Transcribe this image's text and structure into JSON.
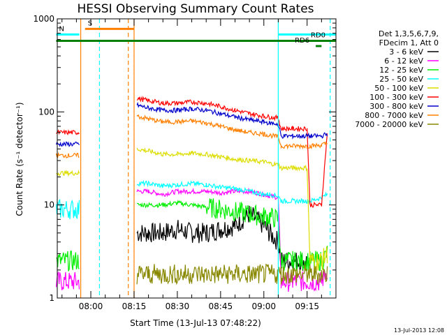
{
  "chart_data": {
    "type": "line",
    "title": "HESSI Observing Summary Count Rates",
    "xlabel": "Start Time (13-Jul-13 07:48:22)",
    "ylabel": "Count Rate (s⁻¹ detector⁻¹)",
    "y_scale": "log",
    "ylim": [
      1,
      1000
    ],
    "xlim": [
      "07:48:22",
      "09:25:00"
    ],
    "x_ticks": [
      "08:00",
      "08:15",
      "08:30",
      "08:45",
      "09:00",
      "09:15"
    ],
    "y_ticks": [
      "1",
      "10",
      "100",
      "1000"
    ],
    "footer": "13-Jul-2013 12:08",
    "legend_header": [
      "Det 1,3,5,6,7,9,",
      "FDecim 1, Att 0"
    ],
    "series": [
      {
        "name": "3 - 6 keV",
        "color": "#000000",
        "x": [
          "07:48",
          "07:56",
          "08:00",
          "08:15",
          "08:16",
          "08:20",
          "08:25",
          "08:30",
          "08:35",
          "08:40",
          "08:45",
          "08:50",
          "08:55",
          "09:00",
          "09:02",
          "09:05",
          "09:06",
          "09:10",
          "09:15",
          "09:16",
          "09:20",
          "09:22"
        ],
        "values": [
          null,
          null,
          null,
          null,
          5,
          5,
          5,
          5.5,
          5,
          5,
          5.5,
          6,
          8,
          6,
          5,
          4,
          2.5,
          2.5,
          2.5,
          null,
          null,
          null
        ]
      },
      {
        "name": "6 - 12 keV",
        "color": "#ff00ff",
        "x": [
          "07:48",
          "07:56",
          "08:00",
          "08:15",
          "08:16",
          "08:20",
          "08:25",
          "08:30",
          "08:35",
          "08:40",
          "08:45",
          "08:50",
          "08:55",
          "09:00",
          "09:02",
          "09:05",
          "09:06",
          "09:10",
          "09:15",
          "09:16",
          "09:20",
          "09:22"
        ],
        "values": [
          1.5,
          1.5,
          null,
          null,
          14,
          14,
          13,
          14,
          14,
          14,
          13.5,
          14,
          14,
          13,
          12.5,
          12,
          1.5,
          1.5,
          1.5,
          1.5,
          1.5,
          2
        ]
      },
      {
        "name": "12 - 25 keV",
        "color": "#00ee00",
        "x": [
          "07:48",
          "07:56",
          "08:00",
          "08:15",
          "08:16",
          "08:20",
          "08:25",
          "08:30",
          "08:35",
          "08:40",
          "08:45",
          "08:50",
          "08:55",
          "09:00",
          "09:02",
          "09:05",
          "09:06",
          "09:10",
          "09:15",
          "09:16",
          "09:20",
          "09:22"
        ],
        "values": [
          2.5,
          2.5,
          null,
          null,
          10,
          10,
          10,
          10.5,
          10,
          9.5,
          9,
          8.5,
          8,
          7.5,
          7.5,
          7,
          2.5,
          2.5,
          2.5,
          2.5,
          2.5,
          3
        ]
      },
      {
        "name": "25 - 50 keV",
        "color": "#00ffff",
        "x": [
          "07:48",
          "07:56",
          "08:00",
          "08:15",
          "08:16",
          "08:20",
          "08:25",
          "08:30",
          "08:35",
          "08:40",
          "08:45",
          "08:50",
          "08:55",
          "09:00",
          "09:02",
          "09:05",
          "09:06",
          "09:10",
          "09:15",
          "09:16",
          "09:20",
          "09:22"
        ],
        "values": [
          9,
          9,
          null,
          null,
          17,
          17,
          16,
          16.5,
          17,
          16.5,
          15.5,
          15,
          14,
          13,
          13,
          12.5,
          11,
          11,
          11,
          11,
          12,
          13
        ]
      },
      {
        "name": "50 - 100 keV",
        "color": "#dddd00",
        "x": [
          "07:48",
          "07:56",
          "08:00",
          "08:15",
          "08:16",
          "08:20",
          "08:25",
          "08:30",
          "08:35",
          "08:40",
          "08:45",
          "08:50",
          "08:55",
          "09:00",
          "09:02",
          "09:05",
          "09:06",
          "09:10",
          "09:15",
          "09:16",
          "09:20",
          "09:22"
        ],
        "values": [
          22,
          22,
          null,
          null,
          40,
          38,
          35,
          35,
          36,
          35,
          33,
          31,
          30,
          29,
          28,
          27,
          25,
          25,
          25,
          2.5,
          2.5,
          3
        ]
      },
      {
        "name": "100 - 300 keV",
        "color": "#ff0000",
        "x": [
          "07:48",
          "07:56",
          "08:00",
          "08:15",
          "08:16",
          "08:20",
          "08:25",
          "08:30",
          "08:35",
          "08:40",
          "08:45",
          "08:50",
          "08:55",
          "09:00",
          "09:02",
          "09:05",
          "09:06",
          "09:10",
          "09:15",
          "09:16",
          "09:20",
          "09:22"
        ],
        "values": [
          60,
          60,
          null,
          null,
          140,
          132,
          124,
          124,
          128,
          124,
          114,
          104,
          96,
          90,
          88,
          86,
          66,
          66,
          66,
          10,
          10,
          60
        ]
      },
      {
        "name": "300 - 800 keV",
        "color": "#0000cc",
        "x": [
          "07:48",
          "07:56",
          "08:00",
          "08:15",
          "08:16",
          "08:20",
          "08:25",
          "08:30",
          "08:35",
          "08:40",
          "08:45",
          "08:50",
          "08:55",
          "09:00",
          "09:02",
          "09:05",
          "09:06",
          "09:10",
          "09:15",
          "09:16",
          "09:20",
          "09:22"
        ],
        "values": [
          45,
          45,
          null,
          null,
          118,
          110,
          104,
          104,
          108,
          104,
          96,
          88,
          82,
          78,
          76,
          74,
          55,
          55,
          55,
          55,
          55,
          58
        ]
      },
      {
        "name": "800 - 7000 keV",
        "color": "#ff8000",
        "x": [
          "07:48",
          "07:56",
          "08:00",
          "08:15",
          "08:16",
          "08:20",
          "08:25",
          "08:30",
          "08:35",
          "08:40",
          "08:45",
          "08:50",
          "08:55",
          "09:00",
          "09:02",
          "09:05",
          "09:06",
          "09:10",
          "09:15",
          "09:16",
          "09:20",
          "09:22"
        ],
        "values": [
          34,
          34,
          null,
          null,
          90,
          84,
          78,
          78,
          80,
          76,
          70,
          64,
          60,
          58,
          56,
          54,
          43,
          43,
          43,
          43,
          44,
          46
        ]
      },
      {
        "name": "7000 - 20000 keV",
        "color": "#888800",
        "x": [
          "07:48",
          "07:56",
          "08:00",
          "08:15",
          "08:16",
          "08:20",
          "08:25",
          "08:30",
          "08:35",
          "08:40",
          "08:45",
          "08:50",
          "08:55",
          "09:00",
          "09:02",
          "09:05",
          "09:06",
          "09:10",
          "09:15",
          "09:16",
          "09:20",
          "09:22"
        ],
        "values": [
          null,
          null,
          null,
          null,
          1.8,
          1.8,
          1.8,
          1.8,
          1.8,
          1.8,
          1.8,
          1.8,
          1.8,
          1.8,
          1.8,
          1.8,
          1.8,
          1.8,
          1.8,
          1.8,
          1.8,
          1.8
        ]
      }
    ],
    "flags": [
      {
        "label": "S",
        "color": "#ff8000",
        "start": "07:58",
        "end": "08:15",
        "y": 780
      },
      {
        "label": "N",
        "color": "#00ffff",
        "start": "07:48",
        "end": "07:56",
        "y": 680
      },
      {
        "label": "",
        "color": "#00ffff",
        "start": "09:05",
        "end": "09:25",
        "y": 680
      },
      {
        "label": "RD0",
        "color": "#008000",
        "start": "07:48",
        "end": "09:25",
        "y": 580
      },
      {
        "label": "RD6",
        "color": "#008000",
        "start": "09:18",
        "end": "09:20",
        "y": 510
      }
    ],
    "vlines": [
      {
        "time": "07:56:30",
        "color": "#ff8000",
        "style": "solid"
      },
      {
        "time": "08:03",
        "color": "#00ffff",
        "style": "dashed"
      },
      {
        "time": "08:13",
        "color": "#ff8000",
        "style": "dashed"
      },
      {
        "time": "08:15",
        "color": "#ff8000",
        "style": "solid"
      },
      {
        "time": "09:05",
        "color": "#00ffff",
        "style": "solid"
      },
      {
        "time": "09:23",
        "color": "#00ffff",
        "style": "dashed"
      }
    ]
  }
}
